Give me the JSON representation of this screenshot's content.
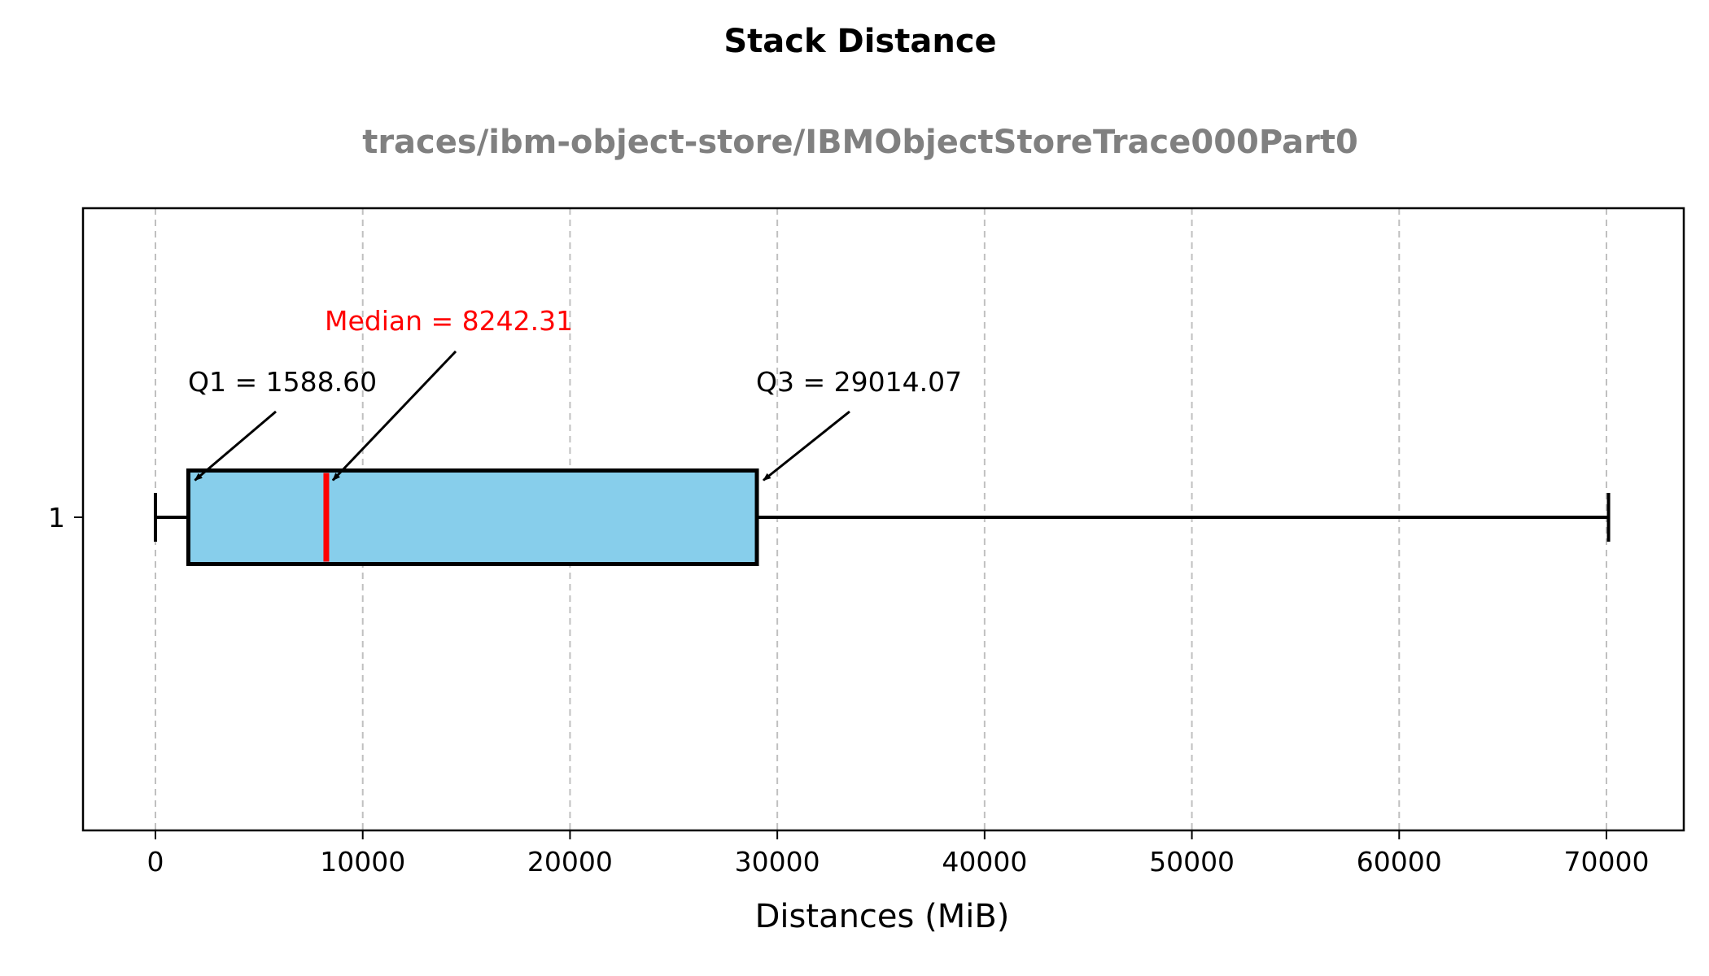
{
  "chart_data": {
    "type": "boxplot",
    "orientation": "horizontal",
    "title": "Stack Distance",
    "subtitle": "traces/ibm-object-store/IBMObjectStoreTrace000Part0",
    "xlabel": "Distances (MiB)",
    "ylabel": "",
    "xlim": [
      -3500,
      73500
    ],
    "xticks": [
      0,
      10000,
      20000,
      30000,
      40000,
      50000,
      60000,
      70000
    ],
    "xtick_labels": [
      "0",
      "10000",
      "20000",
      "30000",
      "40000",
      "50000",
      "60000",
      "70000"
    ],
    "ytick_labels": [
      "1"
    ],
    "grid": "x-dashed",
    "box": {
      "category": "1",
      "whisker_low": 0,
      "q1": 1588.6,
      "median": 8242.31,
      "q3": 29014.07,
      "whisker_high": 70100
    },
    "annotations": {
      "q1": "Q1 = 1588.60",
      "median": "Median = 8242.31",
      "q3": "Q3 = 29014.07"
    },
    "colors": {
      "box_fill": "#87CEEB",
      "median": "#FF0000",
      "subtitle": "#808080",
      "grid": "#C0C0C0"
    }
  }
}
